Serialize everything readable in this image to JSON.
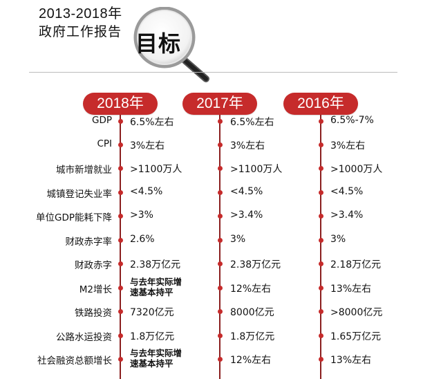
{
  "header": {
    "title_line1": "2013-2018年",
    "title_line2": "政府工作报告",
    "lens_text": "目标"
  },
  "years": [
    "2018年",
    "2017年",
    "2016年"
  ],
  "rows": [
    {
      "label": "GDP",
      "values": [
        "6.5%左右",
        "6.5%左右",
        "6.5%-7%"
      ]
    },
    {
      "label": "CPI",
      "values": [
        "3%左右",
        "3%左右",
        "3%左右"
      ]
    },
    {
      "label": "城市新增就业",
      "values": [
        ">1100万人",
        ">1100万人",
        ">1000万人"
      ]
    },
    {
      "label": "城镇登记失业率",
      "values": [
        "<4.5%",
        "<4.5%",
        "<4.5%"
      ]
    },
    {
      "label": "单位GDP能耗下降",
      "values": [
        ">3%",
        ">3.4%",
        ">3.4%"
      ]
    },
    {
      "label": "财政赤字率",
      "values": [
        "2.6%",
        "3%",
        "3%"
      ]
    },
    {
      "label": "财政赤字",
      "values": [
        "2.38万亿元",
        "2.38万亿元",
        "2.18万亿元"
      ]
    },
    {
      "label": "M2增长",
      "values": [
        "与去年实际增\n速基本持平",
        "12%左右",
        "13%左右"
      ]
    },
    {
      "label": "铁路投资",
      "values": [
        "7320亿元",
        "8000亿元",
        ">8000亿元"
      ]
    },
    {
      "label": "公路水运投资",
      "values": [
        "1.8万亿元",
        "1.8万亿元",
        "1.65万亿元"
      ]
    },
    {
      "label": "社会融资总额增长",
      "values": [
        "与去年实际增\n速基本持平",
        "12%左右",
        "13%左右"
      ]
    }
  ],
  "colors": {
    "accent": "#c62b2b",
    "line": "#8a1e1e"
  }
}
